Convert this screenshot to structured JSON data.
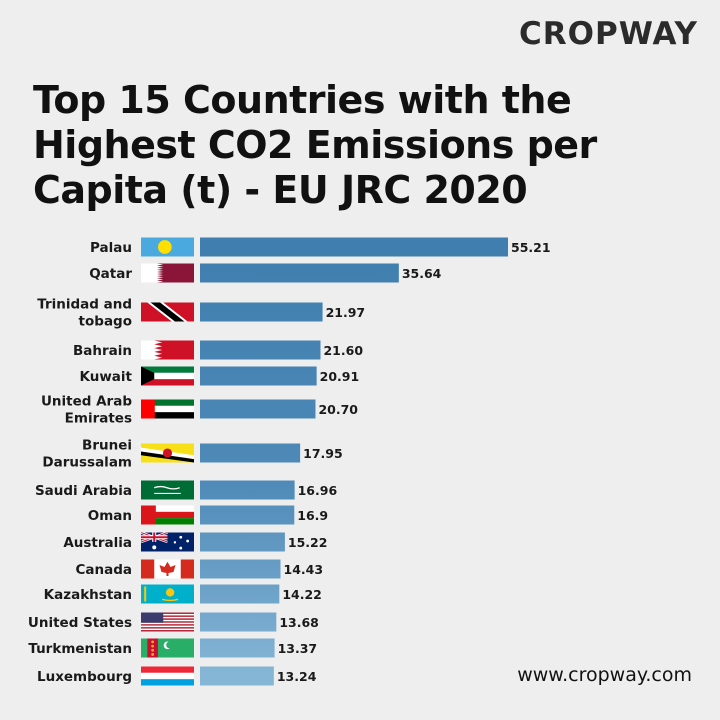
{
  "brand": {
    "logo_text": "CROPWAY",
    "website": "www.cropway.com"
  },
  "colors": {
    "bar_top": "#3f7eae",
    "bar_bottom": "#86b6d6",
    "background": "#eeeeee"
  },
  "chart_data": {
    "type": "bar",
    "orientation": "horizontal",
    "title": "Top 15 Countries with the Highest CO2 Emissions per Capita (t) - EU JRC 2020",
    "categories": [
      [
        "Palau"
      ],
      [
        "Qatar"
      ],
      [
        "Trinidad and",
        "tobago"
      ],
      [
        "Bahrain"
      ],
      [
        "Kuwait"
      ],
      [
        "United Arab",
        "Emirates"
      ],
      [
        "Brunei",
        "Darussalam"
      ],
      [
        "Saudi Arabia"
      ],
      [
        "Oman"
      ],
      [
        "Australia"
      ],
      [
        "Canada"
      ],
      [
        "Kazakhstan"
      ],
      [
        "United States"
      ],
      [
        "Turkmenistan"
      ],
      [
        "Luxembourg"
      ]
    ],
    "values": [
      55.21,
      35.64,
      21.97,
      21.6,
      20.91,
      20.7,
      17.95,
      16.96,
      16.9,
      15.22,
      14.43,
      14.22,
      13.68,
      13.37,
      13.24
    ],
    "value_labels": [
      "55.21",
      "35.64",
      "21.97",
      "21.60",
      "20.91",
      "20.70",
      "17.95",
      "16.96",
      "16.9",
      "15.22",
      "14.43",
      "14.22",
      "13.68",
      "13.37",
      "13.24"
    ],
    "flags": [
      "palau-flag-icon",
      "qatar-flag-icon",
      "trinidad-and-tobago-flag-icon",
      "bahrain-flag-icon",
      "kuwait-flag-icon",
      "uae-flag-icon",
      "brunei-flag-icon",
      "saudi-arabia-flag-icon",
      "oman-flag-icon",
      "australia-flag-icon",
      "canada-flag-icon",
      "kazakhstan-flag-icon",
      "united-states-flag-icon",
      "turkmenistan-flag-icon",
      "luxembourg-flag-icon"
    ],
    "xlim": [
      0,
      55.21
    ],
    "grid": false,
    "legend": "none"
  }
}
